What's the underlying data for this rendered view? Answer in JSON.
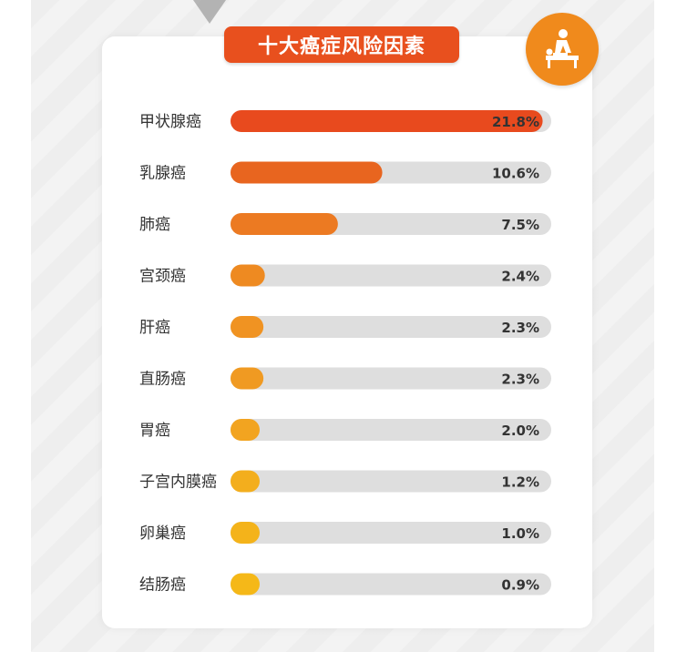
{
  "header": {
    "title": "十大癌症风险因素"
  },
  "icon": "massage-therapy-icon",
  "colors": {
    "title_bg": "#e8501e",
    "badge_bg": "#f08a1c",
    "track": "#dedede",
    "bar_gradient": [
      "#e84a1e",
      "#e8651f",
      "#ec7a22",
      "#ee8a21",
      "#f09322",
      "#f09a22",
      "#f2a420",
      "#f3ae1d",
      "#f4b31a",
      "#f5b818"
    ]
  },
  "chart_data": {
    "type": "bar",
    "orientation": "horizontal",
    "title": "十大癌症风险因素",
    "categories": [
      "甲状腺癌",
      "乳腺癌",
      "肺癌",
      "宫颈癌",
      "肝癌",
      "直肠癌",
      "胃癌",
      "子宫内膜癌",
      "卵巢癌",
      "结肠癌"
    ],
    "values": [
      21.8,
      10.6,
      7.5,
      2.4,
      2.3,
      2.3,
      2.0,
      1.2,
      1.0,
      0.9
    ],
    "value_labels": [
      "21.8%",
      "10.6%",
      "7.5%",
      "2.4%",
      "2.3%",
      "2.3%",
      "2.0%",
      "1.2%",
      "1.0%",
      "0.9%"
    ],
    "unit": "%",
    "xlabel": "",
    "ylabel": "",
    "grid": false,
    "legend": "none"
  }
}
